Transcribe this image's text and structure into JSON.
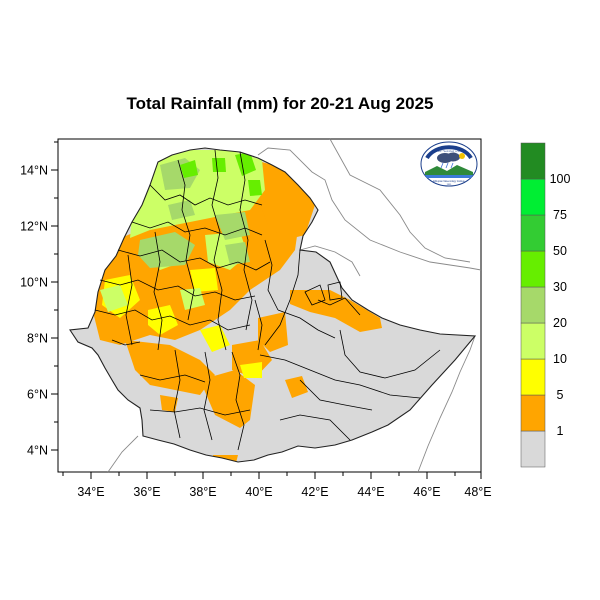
{
  "title": "Total Rainfall (mm) for 20-21 Aug 2025",
  "axes": {
    "lat_ticks": [
      "4°N",
      "6°N",
      "8°N",
      "10°N",
      "12°N",
      "14°N"
    ],
    "lon_ticks": [
      "34°E",
      "36°E",
      "38°E",
      "40°E",
      "42°E",
      "44°E",
      "46°E",
      "48°E"
    ]
  },
  "legend": {
    "labels": [
      "1",
      "5",
      "10",
      "20",
      "30",
      "50",
      "75",
      "100"
    ],
    "colors": [
      "#d9d9d9",
      "#ffa500",
      "#ffff00",
      "#ccff66",
      "#a6d96a",
      "#66ee00",
      "#33cc33",
      "#00ee33",
      "#228b22"
    ]
  },
  "logo": {
    "text_top": "የኢትዮጵያ ሚቲዎሮሎጂ ኢንስቲትዩት",
    "text_bottom": "Ethiopian Meteorology Institute",
    "text_year": "1951"
  },
  "map": {
    "extent": "33°E–48°E, 3.2°N–15°N",
    "colors": {
      "gray": "#d9d9d9",
      "orange": "#ffa500",
      "yellow": "#ffff00",
      "lightgreen": "#ccff66",
      "sage": "#a6d96a",
      "brightgreen": "#66ee00"
    }
  }
}
